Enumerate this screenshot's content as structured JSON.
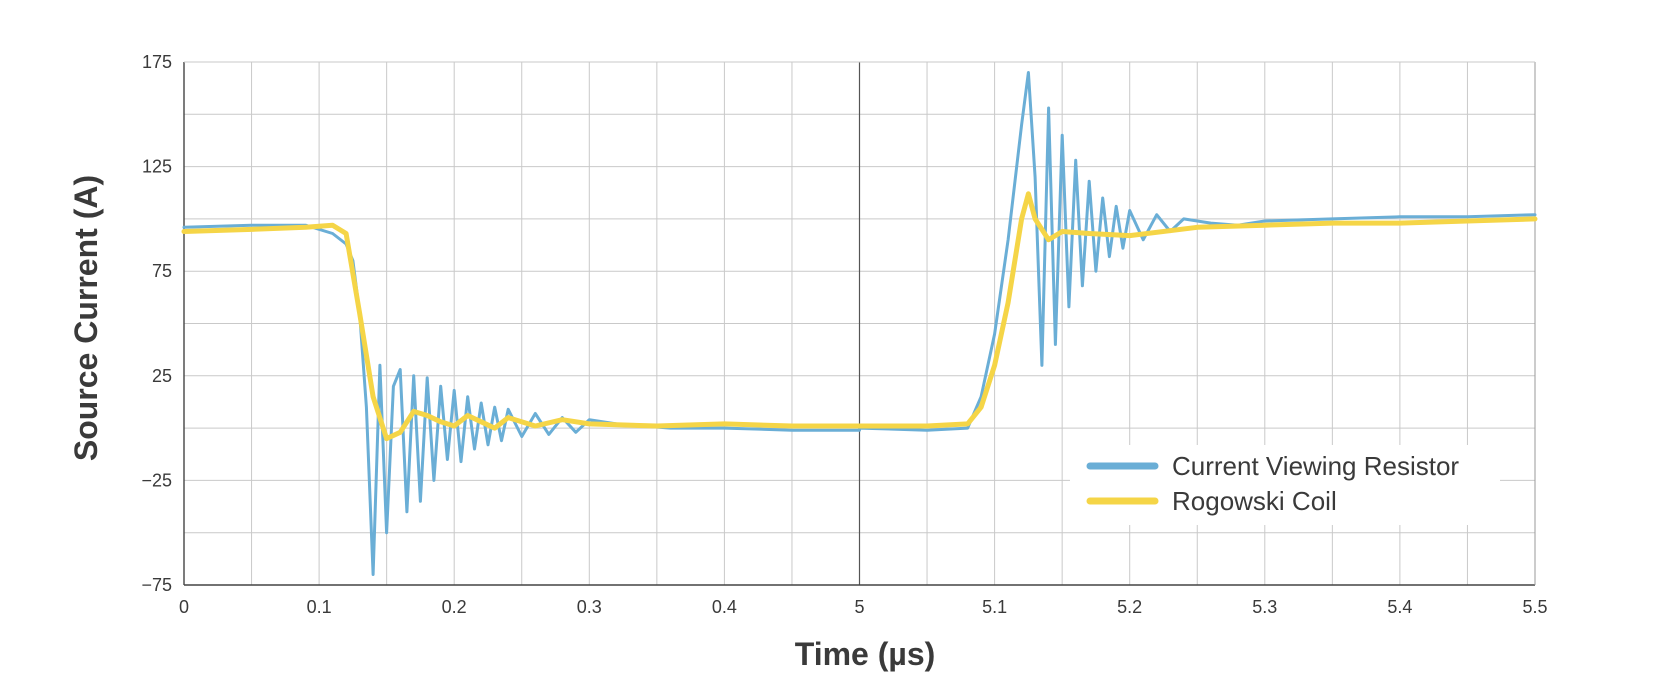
{
  "chart_data": {
    "type": "line",
    "xlabel": "Time (µs)",
    "ylabel": "Source Current (A)",
    "title": "",
    "ylim": [
      -75,
      175
    ],
    "y_ticks": [
      "175",
      "125",
      "75",
      "25",
      "−25",
      "−75"
    ],
    "y_tick_values": [
      175,
      125,
      75,
      25,
      -25,
      -75
    ],
    "x_ticks": [
      "0",
      "0.1",
      "0.2",
      "0.3",
      "0.4",
      "5",
      "5.1",
      "5.2",
      "5.3",
      "5.4",
      "5.5"
    ],
    "x_note": "broken time axis: 0–0.5 µs then 5.0–5.5 µs",
    "grid": true,
    "legend_position": "lower-right",
    "series": [
      {
        "name": "Current Viewing Resistor",
        "color": "#6aaed6",
        "x": [
          0.0,
          0.05,
          0.09,
          0.11,
          0.12,
          0.125,
          0.13,
          0.135,
          0.14,
          0.145,
          0.15,
          0.155,
          0.16,
          0.165,
          0.17,
          0.175,
          0.18,
          0.185,
          0.19,
          0.195,
          0.2,
          0.205,
          0.21,
          0.215,
          0.22,
          0.225,
          0.23,
          0.235,
          0.24,
          0.25,
          0.26,
          0.27,
          0.28,
          0.29,
          0.3,
          0.32,
          0.34,
          0.36,
          0.4,
          0.45,
          0.5,
          5.0,
          5.05,
          5.08,
          5.09,
          5.1,
          5.11,
          5.12,
          5.125,
          5.13,
          5.135,
          5.14,
          5.145,
          5.15,
          5.155,
          5.16,
          5.165,
          5.17,
          5.175,
          5.18,
          5.185,
          5.19,
          5.195,
          5.2,
          5.21,
          5.22,
          5.23,
          5.24,
          5.26,
          5.28,
          5.3,
          5.35,
          5.4,
          5.45,
          5.5
        ],
        "y": [
          96,
          97,
          97,
          93,
          88,
          80,
          55,
          10,
          -70,
          30,
          -50,
          20,
          28,
          -40,
          25,
          -35,
          24,
          -25,
          20,
          -15,
          18,
          -16,
          15,
          -10,
          12,
          -8,
          10,
          -6,
          9,
          -4,
          7,
          -3,
          5,
          -2,
          4,
          2,
          1,
          0,
          0,
          -1,
          -1,
          0,
          -1,
          0,
          15,
          45,
          90,
          145,
          170,
          120,
          30,
          153,
          40,
          140,
          58,
          128,
          68,
          118,
          75,
          110,
          82,
          106,
          86,
          104,
          90,
          102,
          94,
          100,
          98,
          97,
          99,
          100,
          101,
          101,
          102
        ]
      },
      {
        "name": "Rogowski Coil",
        "color": "#f5d547",
        "x": [
          0.0,
          0.05,
          0.09,
          0.11,
          0.12,
          0.13,
          0.14,
          0.15,
          0.16,
          0.17,
          0.18,
          0.19,
          0.2,
          0.21,
          0.22,
          0.23,
          0.24,
          0.26,
          0.28,
          0.3,
          0.35,
          0.4,
          0.45,
          0.5,
          5.0,
          5.05,
          5.08,
          5.09,
          5.1,
          5.11,
          5.12,
          5.125,
          5.13,
          5.14,
          5.15,
          5.17,
          5.2,
          5.25,
          5.3,
          5.35,
          5.4,
          5.45,
          5.5
        ],
        "y": [
          94,
          95,
          96,
          97,
          93,
          55,
          15,
          -5,
          -2,
          8,
          6,
          3,
          1,
          6,
          3,
          0,
          5,
          1,
          4,
          2,
          1,
          2,
          1,
          1,
          1,
          1,
          2,
          10,
          30,
          60,
          100,
          112,
          100,
          90,
          94,
          93,
          92,
          96,
          97,
          98,
          98,
          99,
          100
        ]
      }
    ]
  }
}
